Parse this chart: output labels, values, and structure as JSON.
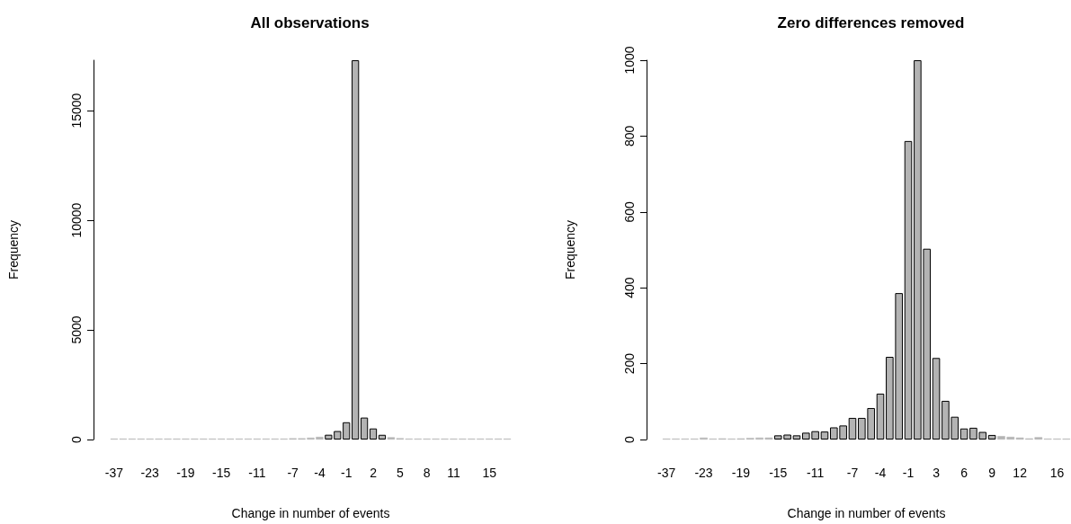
{
  "chart_data": [
    {
      "type": "bar",
      "title": "All observations",
      "xlabel": "Change in number of events",
      "ylabel": "Frequency",
      "categories": [
        "-37",
        null,
        null,
        null,
        "-23",
        null,
        null,
        null,
        "-19",
        null,
        null,
        null,
        "-15",
        null,
        null,
        null,
        "-11",
        null,
        null,
        null,
        "-7",
        null,
        null,
        "-4",
        null,
        null,
        "-1",
        null,
        null,
        "2",
        null,
        null,
        "5",
        null,
        null,
        "8",
        null,
        null,
        "11",
        null,
        null,
        null,
        "15",
        null,
        null
      ],
      "values": [
        1,
        1,
        1,
        2,
        5,
        2,
        3,
        2,
        3,
        4,
        5,
        5,
        11,
        13,
        11,
        18,
        22,
        21,
        32,
        37,
        57,
        57,
        83,
        121,
        218,
        386,
        787,
        17300,
        1000,
        503,
        215,
        102,
        60,
        29,
        31,
        20,
        12,
        9,
        7,
        5,
        3,
        6,
        2,
        2,
        1
      ],
      "color": "#b3b3b3",
      "ylim": [
        0,
        17300
      ],
      "yticks": [
        0,
        5000,
        10000,
        15000
      ]
    },
    {
      "type": "bar",
      "title": "Zero differences removed",
      "xlabel": "Change in number of events",
      "ylabel": "Frequency",
      "categories": [
        "-37",
        null,
        null,
        null,
        "-23",
        null,
        null,
        null,
        "-19",
        null,
        null,
        null,
        "-15",
        null,
        null,
        null,
        "-11",
        null,
        null,
        null,
        "-7",
        null,
        null,
        "-4",
        null,
        null,
        "-1",
        null,
        null,
        "3",
        null,
        null,
        "6",
        null,
        null,
        "9",
        null,
        null,
        "12",
        null,
        null,
        null,
        "16",
        null
      ],
      "values": [
        1,
        1,
        1,
        2,
        5,
        2,
        3,
        2,
        3,
        4,
        5,
        5,
        11,
        13,
        11,
        18,
        22,
        21,
        32,
        37,
        57,
        57,
        83,
        121,
        218,
        386,
        787,
        1000,
        503,
        215,
        102,
        60,
        29,
        31,
        20,
        12,
        9,
        7,
        5,
        3,
        6,
        2,
        2,
        1
      ],
      "color": "#b3b3b3",
      "ylim": [
        0,
        1000
      ],
      "yticks": [
        0,
        200,
        400,
        600,
        800,
        1000
      ]
    }
  ]
}
